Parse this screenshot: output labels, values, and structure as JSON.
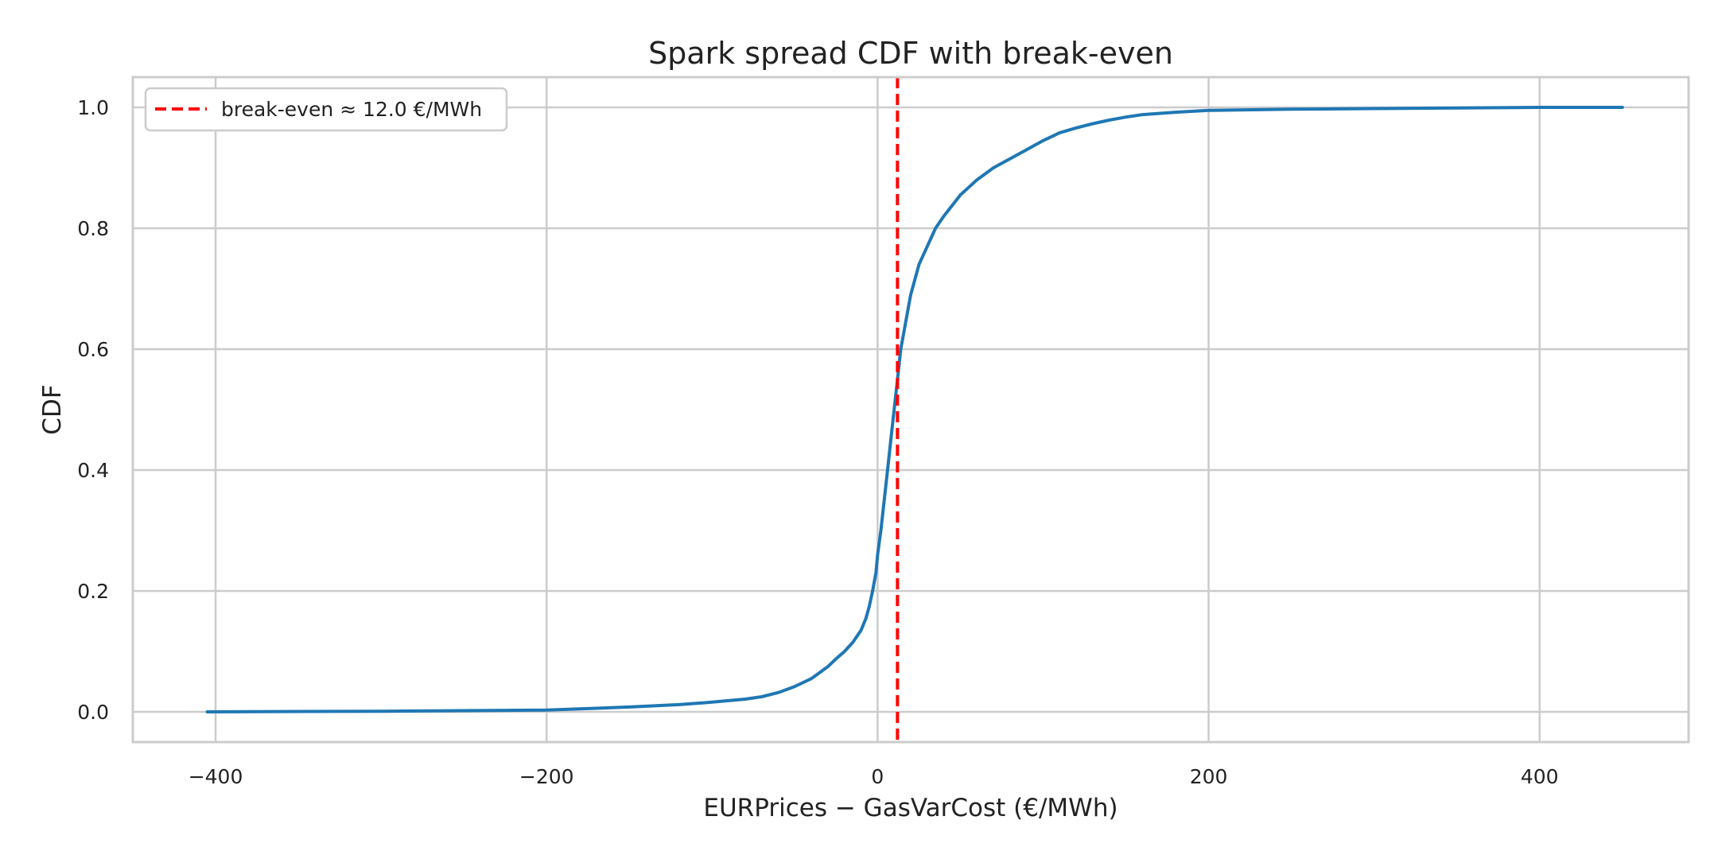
{
  "chart_data": {
    "type": "line",
    "title": "Spark spread CDF with break-even",
    "xlabel": "EURPrices − GasVarCost (€/MWh)",
    "ylabel": "CDF",
    "xlim": [
      -450,
      490
    ],
    "ylim": [
      -0.05,
      1.05
    ],
    "xticks": [
      -400,
      -200,
      0,
      200,
      400
    ],
    "xtick_labels": [
      "−400",
      "−200",
      "0",
      "200",
      "400"
    ],
    "yticks": [
      0.0,
      0.2,
      0.4,
      0.6,
      0.8,
      1.0
    ],
    "ytick_labels": [
      "0.0",
      "0.2",
      "0.4",
      "0.6",
      "0.8",
      "1.0"
    ],
    "grid": true,
    "legend_position": "top-left",
    "series": [
      {
        "color": "#1f77b4",
        "x": [
          -405,
          -300,
          -250,
          -200,
          -180,
          -150,
          -120,
          -100,
          -80,
          -70,
          -60,
          -50,
          -40,
          -30,
          -25,
          -20,
          -15,
          -10,
          -7,
          -5,
          -3,
          -1,
          0,
          2,
          4,
          6,
          8,
          10,
          12,
          14,
          16,
          18,
          20,
          25,
          30,
          35,
          40,
          50,
          60,
          70,
          80,
          90,
          100,
          110,
          120,
          130,
          140,
          150,
          160,
          180,
          200,
          250,
          300,
          350,
          400,
          450
        ],
        "y": [
          0.0,
          0.001,
          0.002,
          0.003,
          0.005,
          0.008,
          0.012,
          0.016,
          0.021,
          0.025,
          0.032,
          0.042,
          0.055,
          0.075,
          0.088,
          0.1,
          0.115,
          0.135,
          0.155,
          0.175,
          0.2,
          0.23,
          0.26,
          0.3,
          0.35,
          0.4,
          0.45,
          0.5,
          0.55,
          0.6,
          0.63,
          0.66,
          0.69,
          0.74,
          0.77,
          0.8,
          0.82,
          0.855,
          0.88,
          0.9,
          0.915,
          0.93,
          0.945,
          0.958,
          0.966,
          0.973,
          0.979,
          0.984,
          0.988,
          0.992,
          0.995,
          0.997,
          0.998,
          0.999,
          1.0,
          1.0
        ]
      }
    ],
    "reference_line": {
      "x": 12.0,
      "color": "#ff0000",
      "style": "dashed",
      "legend_label": "break-even ≈ 12.0 €/MWh"
    }
  }
}
